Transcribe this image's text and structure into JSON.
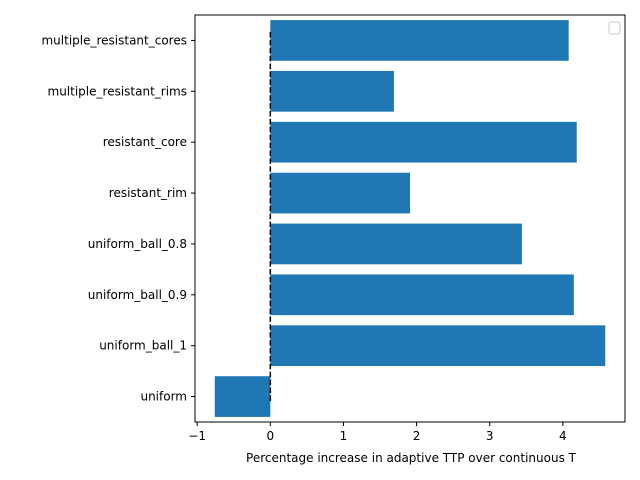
{
  "chart_data": {
    "type": "bar",
    "orientation": "horizontal",
    "title": "",
    "xlabel": "Percentage increase in adaptive TTP over continuous T",
    "ylabel": "",
    "categories": [
      "multiple_resistant_cores",
      "multiple_resistant_rims",
      "resistant_core",
      "resistant_rim",
      "uniform_ball_0.8",
      "uniform_ball_0.9",
      "uniform_ball_1",
      "uniform"
    ],
    "values": [
      4.08,
      1.69,
      4.19,
      1.91,
      3.44,
      4.15,
      4.58,
      -0.76
    ],
    "xlim": [
      -1.03,
      4.85
    ],
    "xticks": [
      -1,
      0,
      1,
      2,
      3,
      4
    ],
    "xtick_labels": [
      "−1",
      "0",
      "1",
      "2",
      "3",
      "4"
    ],
    "reference_line": {
      "x": 0,
      "style": "dashed",
      "color": "#000000"
    },
    "bar_color": "#1f77b4",
    "legend": {
      "placement": "top-right",
      "entries": []
    },
    "grid": false
  }
}
